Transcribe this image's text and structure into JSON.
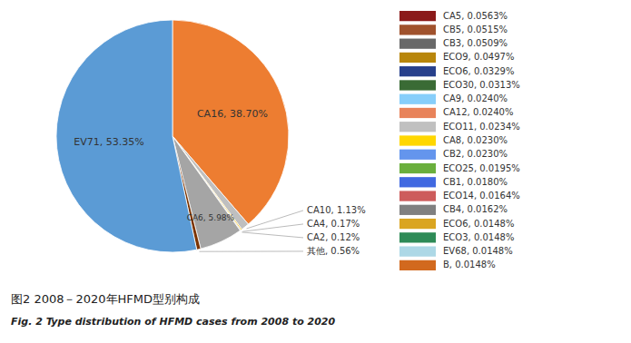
{
  "chart_data": {
    "type": "pie",
    "title": "图2  2008－2020年HFMD型别构成",
    "subtitle": "Fig. 2  Type distribution of HFMD cases from 2008 to 2020",
    "categories": [
      "CA16",
      "CA10",
      "CA4",
      "CA2",
      "CA6",
      "其他",
      "EV71"
    ],
    "values": [
      38.7,
      1.13,
      0.17,
      0.12,
      5.98,
      0.56,
      53.35
    ],
    "colors": [
      "#ED7D31",
      "#BFBFBF",
      "#FFC000",
      "#C0C0C0",
      "#A5A5A5",
      "#7B3300",
      "#5B9BD5"
    ],
    "data_labels": true,
    "value_labels": [
      "CA16, 38.70%",
      "CA10, 1.13%",
      "CA4, 0.17%",
      "CA2, 0.12%",
      "CA6, 5.98%",
      "其他, 0.56%",
      "EV71, 53.35%"
    ],
    "legend_entries": [
      {
        "label": "CA5, 0.0563%",
        "color": "#8B1A1A"
      },
      {
        "label": "CB5, 0.0515%",
        "color": "#A0522D"
      },
      {
        "label": "CB3, 0.0509%",
        "color": "#696969"
      },
      {
        "label": "ECO9, 0.0497%",
        "color": "#B8860B"
      },
      {
        "label": "ECO6, 0.0329%",
        "color": "#27408B"
      },
      {
        "label": "ECO30, 0.0313%",
        "color": "#3A6B35"
      },
      {
        "label": "CA9, 0.0240%",
        "color": "#87CEFA"
      },
      {
        "label": "CA12, 0.0240%",
        "color": "#E8835A"
      },
      {
        "label": "ECO11, 0.0234%",
        "color": "#C0C0C0"
      },
      {
        "label": "CA8, 0.0230%",
        "color": "#FFD700"
      },
      {
        "label": "CB2, 0.0230%",
        "color": "#6495ED"
      },
      {
        "label": "ECO25, 0.0195%",
        "color": "#6AAF3D"
      },
      {
        "label": "CB1, 0.0180%",
        "color": "#4169E1"
      },
      {
        "label": "ECO14, 0.0164%",
        "color": "#CD5C5C"
      },
      {
        "label": "CB4, 0.0162%",
        "color": "#808080"
      },
      {
        "label": "ECO6, 0.0148%",
        "color": "#DAA520"
      },
      {
        "label": "ECO3, 0.0148%",
        "color": "#2E8B57"
      },
      {
        "label": "EV68, 0.0148%",
        "color": "#ADD8E6"
      },
      {
        "label": "B, 0.0148%",
        "color": "#D2691E"
      }
    ]
  }
}
